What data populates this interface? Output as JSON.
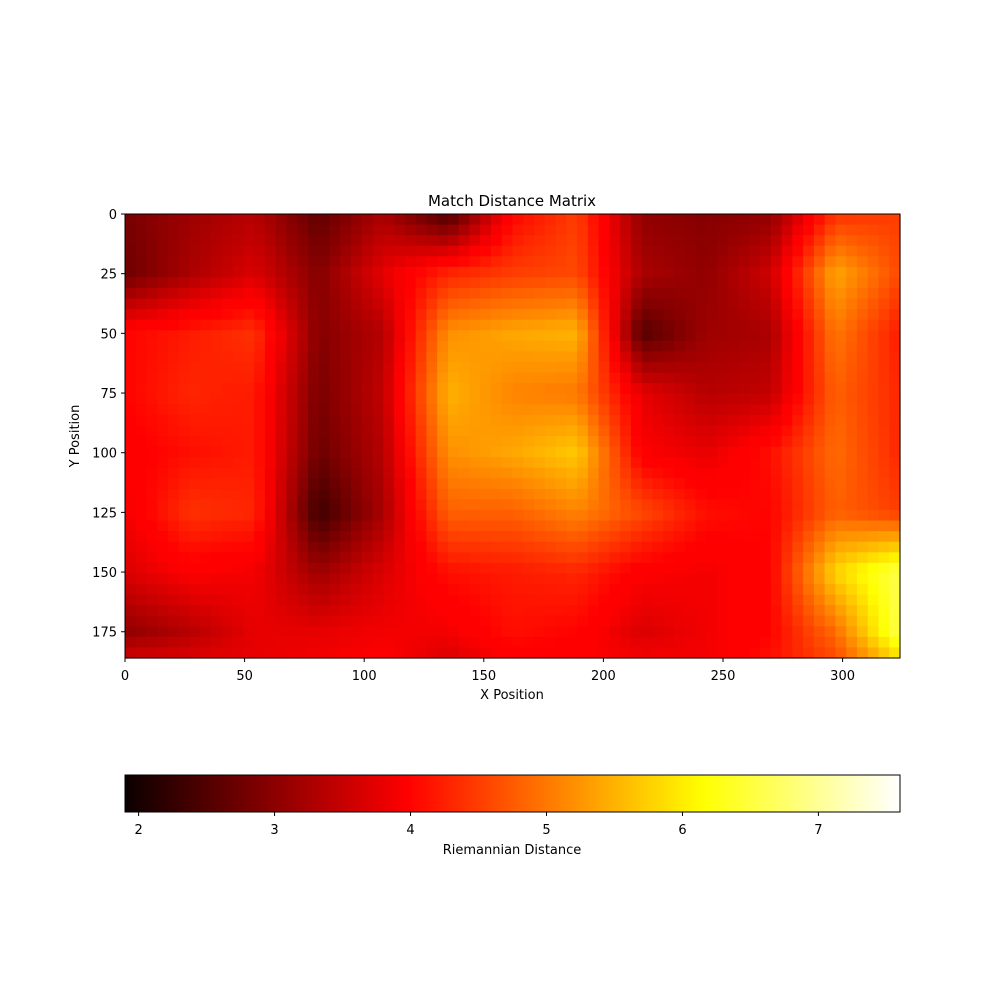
{
  "chart_data": {
    "type": "heatmap",
    "title": "Match Distance Matrix",
    "xlabel": "X Position",
    "ylabel": "Y Position",
    "colorbar_label": "Riemannian Distance",
    "colormap": "hot",
    "xlim": [
      0,
      324
    ],
    "ylim": [
      186,
      0
    ],
    "x_ticks": [
      0,
      50,
      100,
      150,
      200,
      250,
      300
    ],
    "y_ticks": [
      0,
      25,
      50,
      75,
      100,
      125,
      150,
      175
    ],
    "colorbar_range": [
      1.9,
      7.6
    ],
    "colorbar_ticks": [
      2,
      3,
      4,
      5,
      6,
      7
    ],
    "grid_x": [
      0,
      27,
      54,
      81,
      108,
      135,
      162,
      189,
      216,
      243,
      270,
      297,
      324
    ],
    "grid_y": [
      0,
      25,
      50,
      75,
      100,
      125,
      150,
      175,
      186
    ],
    "values": [
      [
        2.8,
        3.1,
        3.3,
        2.6,
        3.2,
        2.4,
        4.0,
        4.5,
        3.0,
        2.9,
        3.0,
        4.4,
        4.5
      ],
      [
        2.7,
        3.2,
        3.6,
        2.9,
        3.7,
        4.3,
        4.5,
        4.6,
        3.2,
        3.0,
        3.5,
        5.4,
        4.6
      ],
      [
        4.0,
        4.2,
        4.4,
        2.9,
        3.3,
        5.2,
        5.4,
        5.5,
        2.5,
        3.1,
        3.2,
        5.0,
        4.2
      ],
      [
        4.0,
        4.3,
        4.2,
        2.8,
        3.4,
        5.5,
        5.1,
        5.0,
        3.7,
        3.3,
        3.4,
        4.8,
        4.3
      ],
      [
        3.9,
        4.1,
        4.2,
        2.7,
        3.3,
        5.2,
        5.4,
        5.7,
        3.9,
        3.7,
        4.1,
        4.9,
        4.3
      ],
      [
        3.8,
        4.4,
        4.3,
        2.3,
        3.2,
        4.8,
        4.8,
        5.1,
        4.6,
        4.1,
        4.0,
        4.8,
        4.5
      ],
      [
        3.6,
        3.9,
        3.8,
        3.1,
        3.6,
        4.1,
        4.2,
        4.3,
        3.9,
        3.8,
        4.0,
        5.8,
        6.6
      ],
      [
        3.0,
        3.3,
        3.7,
        3.7,
        3.8,
        3.8,
        4.1,
        4.0,
        3.6,
        3.8,
        4.0,
        4.9,
        6.6
      ],
      [
        3.5,
        3.6,
        3.7,
        3.8,
        3.9,
        3.6,
        3.9,
        3.9,
        3.8,
        3.8,
        4.1,
        4.6,
        5.9
      ]
    ]
  }
}
